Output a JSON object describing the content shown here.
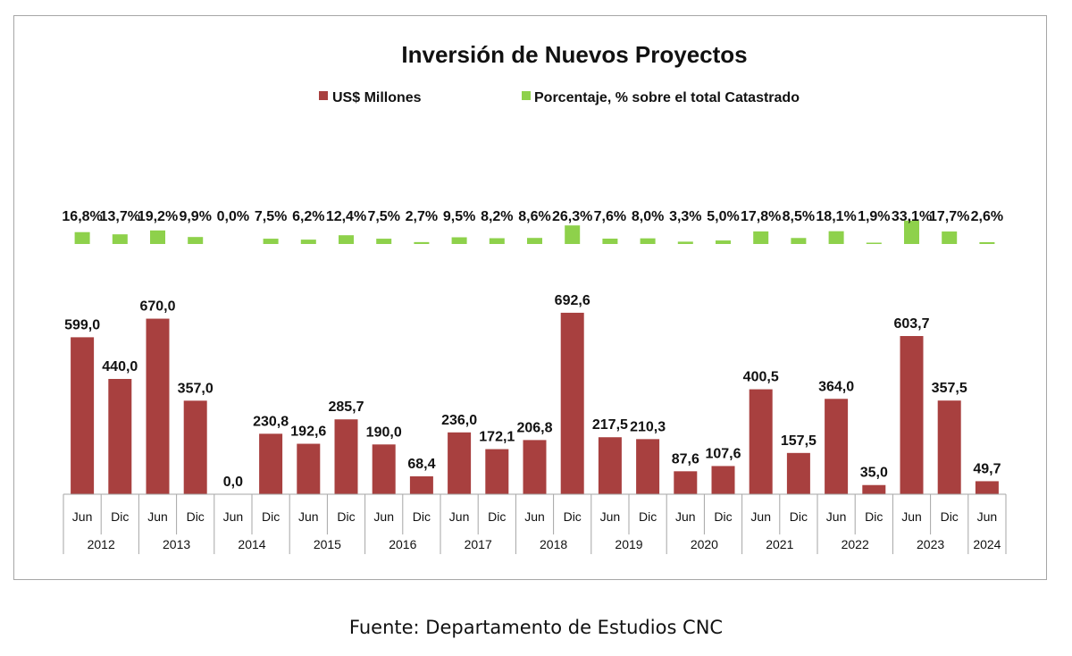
{
  "footer": {
    "source": "Fuente: Departamento de Estudios CNC"
  },
  "chart_data": {
    "type": "bar",
    "title": "Inversión de Nuevos Proyectos",
    "legend_position": "top",
    "grid": false,
    "colors": {
      "usd": "#a8403f",
      "pct": "#8ed14b",
      "axis": "#a6a6a6"
    },
    "categories": [
      "Jun",
      "Dic",
      "Jun",
      "Dic",
      "Jun",
      "Dic",
      "Jun",
      "Dic",
      "Jun",
      "Dic",
      "Jun",
      "Dic",
      "Jun",
      "Dic",
      "Jun",
      "Dic",
      "Jun",
      "Dic",
      "Jun",
      "Dic",
      "Jun",
      "Dic",
      "Jun",
      "Dic",
      "Jun"
    ],
    "years": [
      {
        "label": "2012",
        "span": 2
      },
      {
        "label": "2013",
        "span": 2
      },
      {
        "label": "2014",
        "span": 2
      },
      {
        "label": "2015",
        "span": 2
      },
      {
        "label": "2016",
        "span": 2
      },
      {
        "label": "2017",
        "span": 2
      },
      {
        "label": "2018",
        "span": 2
      },
      {
        "label": "2019",
        "span": 2
      },
      {
        "label": "2020",
        "span": 2
      },
      {
        "label": "2021",
        "span": 2
      },
      {
        "label": "2022",
        "span": 2
      },
      {
        "label": "2023",
        "span": 2
      },
      {
        "label": "2024",
        "span": 1
      }
    ],
    "series": [
      {
        "name": "US$ Millones",
        "values": [
          599.0,
          440.0,
          670.0,
          357.0,
          0.0,
          230.8,
          192.6,
          285.7,
          190.0,
          68.4,
          236.0,
          172.1,
          206.8,
          692.6,
          217.5,
          210.3,
          87.6,
          107.6,
          400.5,
          157.5,
          364.0,
          35.0,
          603.7,
          357.5,
          49.7
        ],
        "labels": [
          "599,0",
          "440,0",
          "670,0",
          "357,0",
          "0,0",
          "230,8",
          "192,6",
          "285,7",
          "190,0",
          "68,4",
          "236,0",
          "172,1",
          "206,8",
          "692,6",
          "217,5",
          "210,3",
          "87,6",
          "107,6",
          "400,5",
          "157,5",
          "364,0",
          "35,0",
          "603,7",
          "357,5",
          "49,7"
        ]
      },
      {
        "name": "Porcentaje, % sobre el total Catastrado",
        "values": [
          16.8,
          13.7,
          19.2,
          9.9,
          0.0,
          7.5,
          6.2,
          12.4,
          7.5,
          2.7,
          9.5,
          8.2,
          8.6,
          26.3,
          7.6,
          8.0,
          3.3,
          5.0,
          17.8,
          8.5,
          18.1,
          1.9,
          33.1,
          17.7,
          2.6
        ],
        "labels": [
          "16,8%",
          "13,7%",
          "19,2%",
          "9,9%",
          "0,0%",
          "7,5%",
          "6,2%",
          "12,4%",
          "7,5%",
          "2,7%",
          "9,5%",
          "8,2%",
          "8,6%",
          "26,3%",
          "7,6%",
          "8,0%",
          "3,3%",
          "5,0%",
          "17,8%",
          "8,5%",
          "18,1%",
          "1,9%",
          "33,1%",
          "17,7%",
          "2,6%"
        ]
      }
    ]
  }
}
